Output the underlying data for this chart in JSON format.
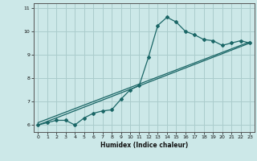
{
  "title": "",
  "xlabel": "Humidex (Indice chaleur)",
  "ylabel": "",
  "background_color": "#cce8e8",
  "grid_color": "#aacccc",
  "line_color": "#1a6666",
  "x_data": [
    0,
    1,
    2,
    3,
    4,
    5,
    6,
    7,
    8,
    9,
    10,
    11,
    12,
    13,
    14,
    15,
    16,
    17,
    18,
    19,
    20,
    21,
    22,
    23
  ],
  "line1": [
    6.0,
    6.1,
    6.2,
    6.2,
    6.0,
    6.3,
    6.5,
    6.6,
    6.65,
    7.1,
    7.5,
    7.7,
    8.9,
    10.25,
    10.6,
    10.4,
    10.0,
    9.85,
    9.65,
    9.6,
    9.4,
    9.5,
    9.6,
    9.5
  ],
  "line2_x": [
    0,
    23
  ],
  "line2_y": [
    6.0,
    9.5
  ],
  "line3_x": [
    0,
    23
  ],
  "line3_y": [
    6.1,
    9.55
  ],
  "xlim": [
    -0.5,
    23.5
  ],
  "ylim": [
    5.7,
    11.2
  ],
  "yticks": [
    6,
    7,
    8,
    9,
    10,
    11
  ],
  "xticks": [
    0,
    1,
    2,
    3,
    4,
    5,
    6,
    7,
    8,
    9,
    10,
    11,
    12,
    13,
    14,
    15,
    16,
    17,
    18,
    19,
    20,
    21,
    22,
    23
  ]
}
